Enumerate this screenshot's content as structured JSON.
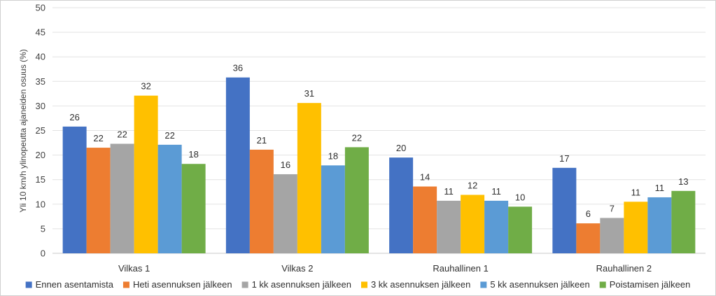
{
  "chart_data": {
    "type": "bar",
    "ylabel": "Yli 10 km/h ylinopeutta ajaneiden osuus (%)",
    "ylim": [
      0,
      50
    ],
    "yticks": [
      0,
      5,
      10,
      15,
      20,
      25,
      30,
      35,
      40,
      45,
      50
    ],
    "grid": true,
    "legend_position": "bottom",
    "categories": [
      "Vilkas 1",
      "Vilkas 2",
      "Rauhallinen 1",
      "Rauhallinen 2"
    ],
    "series": [
      {
        "name": "Ennen asentamista",
        "color": "#4472C4",
        "values": [
          25.8,
          35.8,
          19.5,
          17.4
        ],
        "labels": [
          "26",
          "36",
          "20",
          "17"
        ]
      },
      {
        "name": "Heti asennuksen jälkeen",
        "color": "#ED7D31",
        "values": [
          21.5,
          21.1,
          13.6,
          6.1
        ],
        "labels": [
          "22",
          "21",
          "14",
          "6"
        ]
      },
      {
        "name": "1 kk asennuksen jälkeen",
        "color": "#A5A5A5",
        "values": [
          22.3,
          16.1,
          10.7,
          7.2
        ],
        "labels": [
          "22",
          "16",
          "11",
          "7"
        ]
      },
      {
        "name": "3 kk asennuksen jälkeen",
        "color": "#FFC000",
        "values": [
          32.1,
          30.6,
          11.9,
          10.5
        ],
        "labels": [
          "32",
          "31",
          "12",
          "11"
        ]
      },
      {
        "name": "5 kk asennuksen jälkeen",
        "color": "#5B9BD5",
        "values": [
          22.1,
          17.9,
          10.7,
          11.4
        ],
        "labels": [
          "22",
          "18",
          "11",
          "11"
        ]
      },
      {
        "name": "Poistamisen jälkeen",
        "color": "#70AD47",
        "values": [
          18.2,
          21.6,
          9.5,
          12.7
        ],
        "labels": [
          "18",
          "22",
          "10",
          "13"
        ]
      }
    ]
  }
}
